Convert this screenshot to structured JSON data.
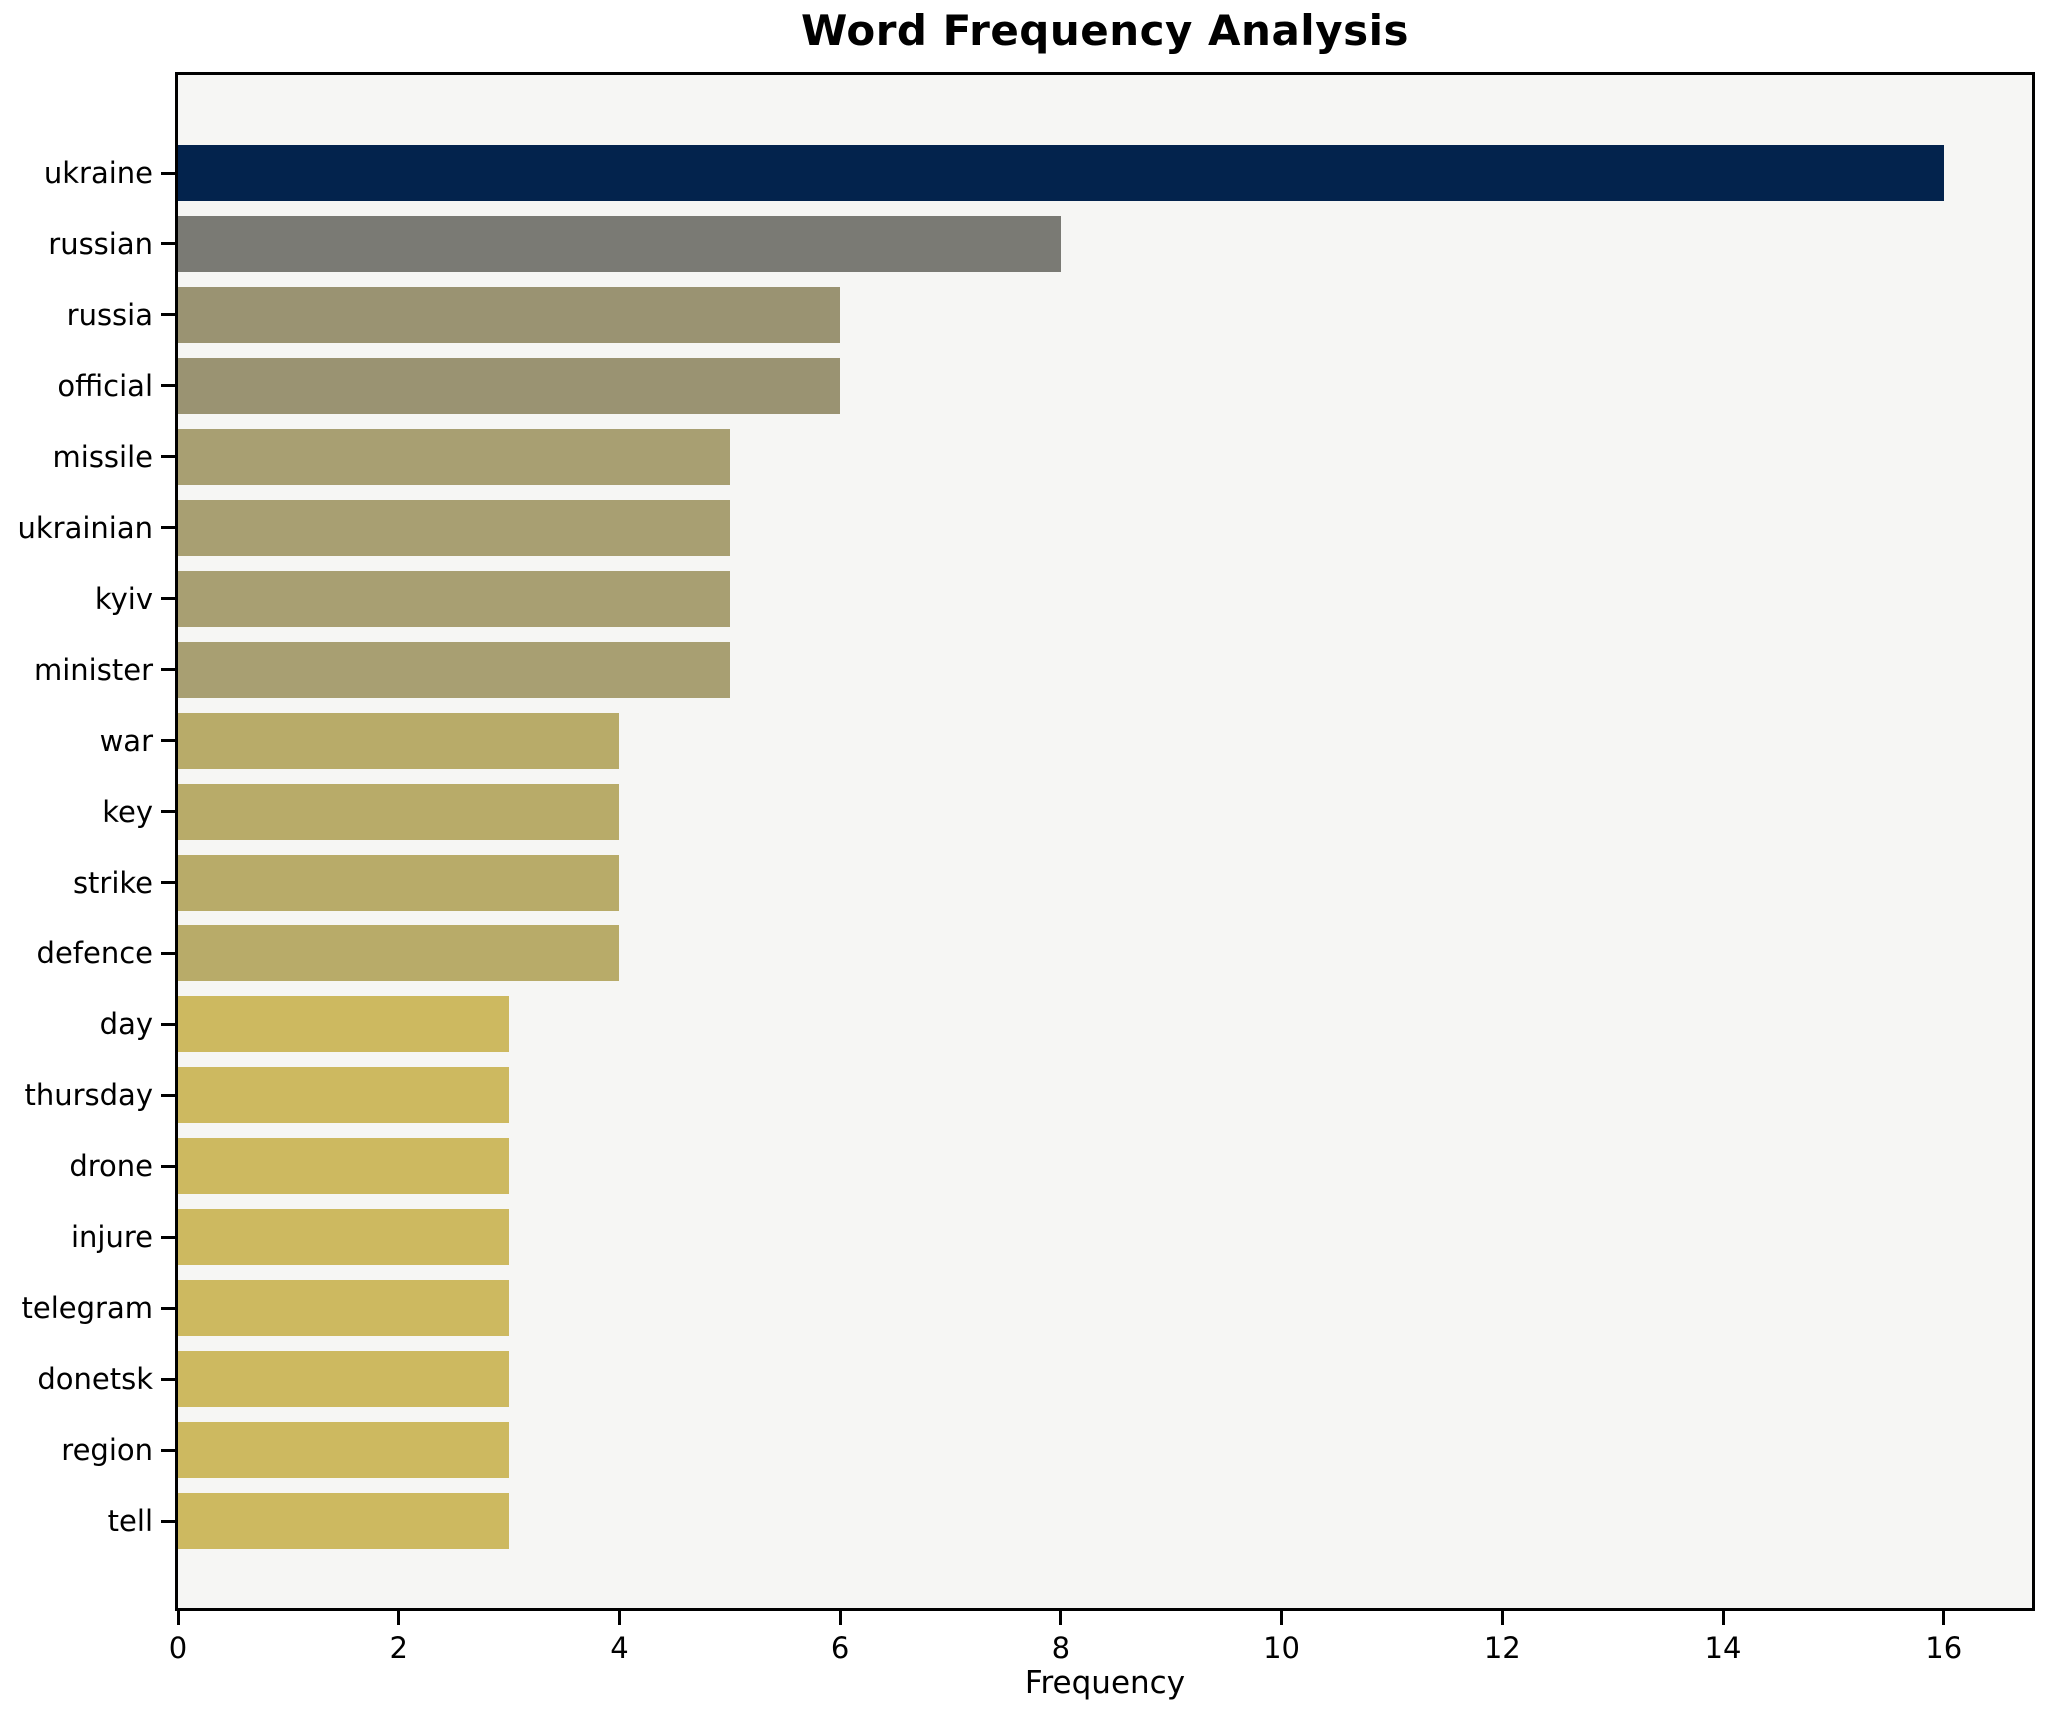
{
  "colors": {
    "figure_background": "#ffffff",
    "axes_background": "#f6f6f4",
    "axis_frame": "#000000",
    "text": "#000000",
    "bar_max": "#03234d",
    "bar_high": "#7a7a74",
    "bar_mid": "#9a9372",
    "bar_low": "#b8ab69",
    "bar_min": "#cdb960"
  },
  "chart_data": {
    "type": "bar",
    "orientation": "horizontal",
    "title": "Word Frequency Analysis",
    "xlabel": "Frequency",
    "ylabel": "",
    "grid": false,
    "legend": false,
    "xlim": [
      0,
      16.8
    ],
    "x_ticks": [
      0,
      2,
      4,
      6,
      8,
      10,
      12,
      14,
      16
    ],
    "categories": [
      "ukraine",
      "russian",
      "russia",
      "official",
      "missile",
      "ukrainian",
      "kyiv",
      "minister",
      "war",
      "key",
      "strike",
      "defence",
      "day",
      "thursday",
      "drone",
      "injure",
      "telegram",
      "donetsk",
      "region",
      "tell"
    ],
    "values": [
      16,
      8,
      6,
      6,
      5,
      5,
      5,
      5,
      4,
      4,
      4,
      4,
      3,
      3,
      3,
      3,
      3,
      3,
      3,
      3
    ],
    "bar_colors": [
      "#03234d",
      "#7a7a74",
      "#9a9372",
      "#9a9372",
      "#a89f72",
      "#a89f72",
      "#a89f72",
      "#a89f72",
      "#b8ab69",
      "#b8ab69",
      "#b8ab69",
      "#b8ab69",
      "#cdb960",
      "#cdb960",
      "#cdb960",
      "#cdb960",
      "#cdb960",
      "#cdb960",
      "#cdb960",
      "#cdb960"
    ]
  }
}
